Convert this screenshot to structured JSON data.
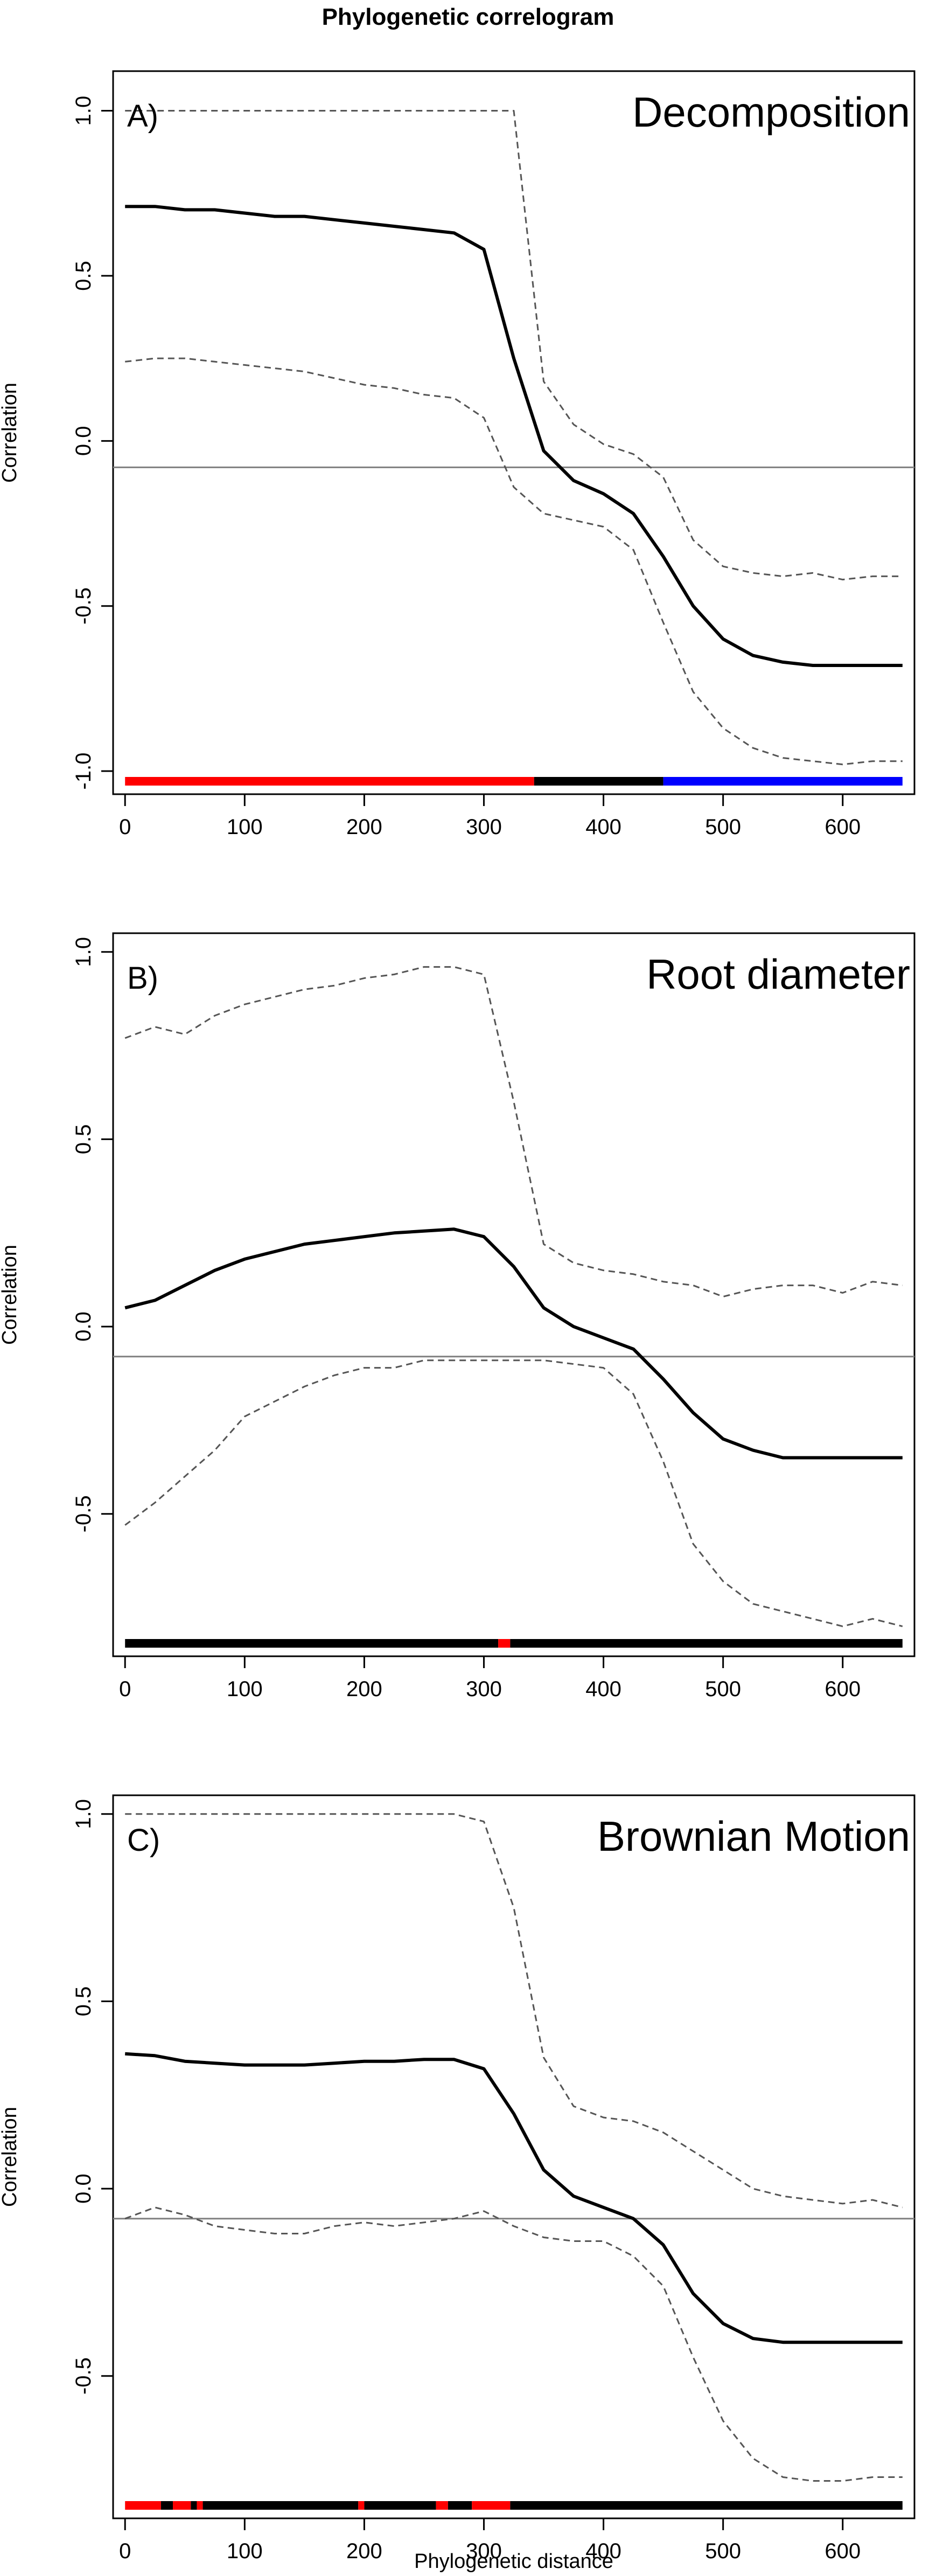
{
  "figure": {
    "title": "Phylogenetic correlogram",
    "xlabel": "Phylogenetic distance"
  },
  "chart_data": [
    {
      "type": "line",
      "panel": "A)",
      "title": "Decomposition",
      "ylabel": "Correlation",
      "xlim": [
        -10,
        660
      ],
      "ylim": [
        -1.07,
        1.12
      ],
      "xticks": [
        0,
        100,
        200,
        300,
        400,
        500,
        600
      ],
      "yticks": [
        -1.0,
        -0.5,
        0.0,
        0.5,
        1.0
      ],
      "reference_line": -0.08,
      "x": [
        0,
        25,
        50,
        75,
        100,
        125,
        150,
        175,
        200,
        225,
        250,
        275,
        300,
        325,
        350,
        375,
        400,
        425,
        450,
        475,
        500,
        525,
        550,
        575,
        600,
        625,
        650
      ],
      "series": [
        {
          "role": "estimate",
          "color": "#000000",
          "values": [
            0.71,
            0.71,
            0.7,
            0.7,
            0.69,
            0.68,
            0.68,
            0.67,
            0.66,
            0.65,
            0.64,
            0.63,
            0.58,
            0.25,
            -0.03,
            -0.12,
            -0.16,
            -0.22,
            -0.35,
            -0.5,
            -0.6,
            -0.65,
            -0.67,
            -0.68,
            -0.68,
            -0.68,
            -0.68
          ]
        },
        {
          "role": "upper-ci",
          "color": "#555555",
          "values": [
            1.0,
            1.0,
            1.0,
            1.0,
            1.0,
            1.0,
            1.0,
            1.0,
            1.0,
            1.0,
            1.0,
            1.0,
            1.0,
            1.0,
            0.18,
            0.05,
            -0.01,
            -0.04,
            -0.11,
            -0.3,
            -0.38,
            -0.4,
            -0.41,
            -0.4,
            -0.42,
            -0.41,
            -0.41
          ]
        },
        {
          "role": "lower-ci",
          "color": "#555555",
          "values": [
            0.24,
            0.25,
            0.25,
            0.24,
            0.23,
            0.22,
            0.21,
            0.19,
            0.17,
            0.16,
            0.14,
            0.13,
            0.07,
            -0.14,
            -0.22,
            -0.24,
            -0.26,
            -0.33,
            -0.55,
            -0.76,
            -0.87,
            -0.93,
            -0.96,
            -0.97,
            -0.98,
            -0.97,
            -0.97
          ]
        }
      ],
      "significance_bar": [
        {
          "from": 0,
          "to": 342,
          "color": "#ff0000"
        },
        {
          "from": 342,
          "to": 450,
          "color": "#000000"
        },
        {
          "from": 450,
          "to": 650,
          "color": "#0000ff"
        }
      ]
    },
    {
      "type": "line",
      "panel": "B)",
      "title": "Root diameter",
      "ylabel": "Correlation",
      "xlim": [
        -10,
        660
      ],
      "ylim": [
        -0.88,
        1.05
      ],
      "xticks": [
        0,
        100,
        200,
        300,
        400,
        500,
        600
      ],
      "yticks": [
        -0.5,
        0.0,
        0.5,
        1.0
      ],
      "reference_line": -0.08,
      "x": [
        0,
        25,
        50,
        75,
        100,
        125,
        150,
        175,
        200,
        225,
        250,
        275,
        300,
        325,
        350,
        375,
        400,
        425,
        450,
        475,
        500,
        525,
        550,
        575,
        600,
        625,
        650
      ],
      "series": [
        {
          "role": "estimate",
          "color": "#000000",
          "values": [
            0.05,
            0.07,
            0.11,
            0.15,
            0.18,
            0.2,
            0.22,
            0.23,
            0.24,
            0.25,
            0.255,
            0.26,
            0.24,
            0.16,
            0.05,
            0.0,
            -0.03,
            -0.06,
            -0.14,
            -0.23,
            -0.3,
            -0.33,
            -0.35,
            -0.35,
            -0.35,
            -0.35,
            -0.35
          ]
        },
        {
          "role": "upper-ci",
          "color": "#555555",
          "values": [
            0.77,
            0.8,
            0.78,
            0.83,
            0.86,
            0.88,
            0.9,
            0.91,
            0.93,
            0.94,
            0.96,
            0.96,
            0.94,
            0.6,
            0.22,
            0.17,
            0.15,
            0.14,
            0.12,
            0.11,
            0.08,
            0.1,
            0.11,
            0.11,
            0.09,
            0.12,
            0.11
          ]
        },
        {
          "role": "lower-ci",
          "color": "#555555",
          "values": [
            -0.53,
            -0.47,
            -0.4,
            -0.33,
            -0.24,
            -0.2,
            -0.16,
            -0.13,
            -0.11,
            -0.11,
            -0.09,
            -0.09,
            -0.09,
            -0.09,
            -0.09,
            -0.1,
            -0.11,
            -0.18,
            -0.36,
            -0.58,
            -0.68,
            -0.74,
            -0.76,
            -0.78,
            -0.8,
            -0.78,
            -0.8
          ]
        }
      ],
      "significance_bar": [
        {
          "from": 0,
          "to": 312,
          "color": "#000000"
        },
        {
          "from": 312,
          "to": 322,
          "color": "#ff0000"
        },
        {
          "from": 322,
          "to": 650,
          "color": "#000000"
        }
      ]
    },
    {
      "type": "line",
      "panel": "C)",
      "title": "Brownian Motion",
      "ylabel": "Correlation",
      "xlim": [
        -10,
        660
      ],
      "ylim": [
        -0.88,
        1.05
      ],
      "xticks": [
        0,
        100,
        200,
        300,
        400,
        500,
        600
      ],
      "yticks": [
        -0.5,
        0.0,
        0.5,
        1.0
      ],
      "reference_line": -0.08,
      "x": [
        0,
        25,
        50,
        75,
        100,
        125,
        150,
        175,
        200,
        225,
        250,
        275,
        300,
        325,
        350,
        375,
        400,
        425,
        450,
        475,
        500,
        525,
        550,
        575,
        600,
        625,
        650
      ],
      "series": [
        {
          "role": "estimate",
          "color": "#000000",
          "values": [
            0.36,
            0.355,
            0.34,
            0.335,
            0.33,
            0.33,
            0.33,
            0.335,
            0.34,
            0.34,
            0.345,
            0.345,
            0.32,
            0.2,
            0.05,
            -0.02,
            -0.05,
            -0.08,
            -0.15,
            -0.28,
            -0.36,
            -0.4,
            -0.41,
            -0.41,
            -0.41,
            -0.41,
            -0.41
          ]
        },
        {
          "role": "upper-ci",
          "color": "#555555",
          "values": [
            1.0,
            1.0,
            1.0,
            1.0,
            1.0,
            1.0,
            1.0,
            1.0,
            1.0,
            1.0,
            1.0,
            1.0,
            0.98,
            0.75,
            0.35,
            0.22,
            0.19,
            0.18,
            0.15,
            0.1,
            0.05,
            0.0,
            -0.02,
            -0.03,
            -0.04,
            -0.03,
            -0.05
          ]
        },
        {
          "role": "lower-ci",
          "color": "#555555",
          "values": [
            -0.08,
            -0.05,
            -0.07,
            -0.1,
            -0.11,
            -0.12,
            -0.12,
            -0.1,
            -0.09,
            -0.1,
            -0.09,
            -0.08,
            -0.06,
            -0.1,
            -0.13,
            -0.14,
            -0.14,
            -0.18,
            -0.26,
            -0.45,
            -0.62,
            -0.72,
            -0.77,
            -0.78,
            -0.78,
            -0.77,
            -0.77
          ]
        }
      ],
      "significance_bar": [
        {
          "from": 0,
          "to": 30,
          "color": "#ff0000"
        },
        {
          "from": 30,
          "to": 40,
          "color": "#000000"
        },
        {
          "from": 40,
          "to": 55,
          "color": "#ff0000"
        },
        {
          "from": 55,
          "to": 60,
          "color": "#000000"
        },
        {
          "from": 60,
          "to": 65,
          "color": "#ff0000"
        },
        {
          "from": 65,
          "to": 195,
          "color": "#000000"
        },
        {
          "from": 195,
          "to": 200,
          "color": "#ff0000"
        },
        {
          "from": 200,
          "to": 260,
          "color": "#000000"
        },
        {
          "from": 260,
          "to": 270,
          "color": "#ff0000"
        },
        {
          "from": 270,
          "to": 290,
          "color": "#000000"
        },
        {
          "from": 290,
          "to": 322,
          "color": "#ff0000"
        },
        {
          "from": 322,
          "to": 650,
          "color": "#000000"
        }
      ]
    }
  ]
}
